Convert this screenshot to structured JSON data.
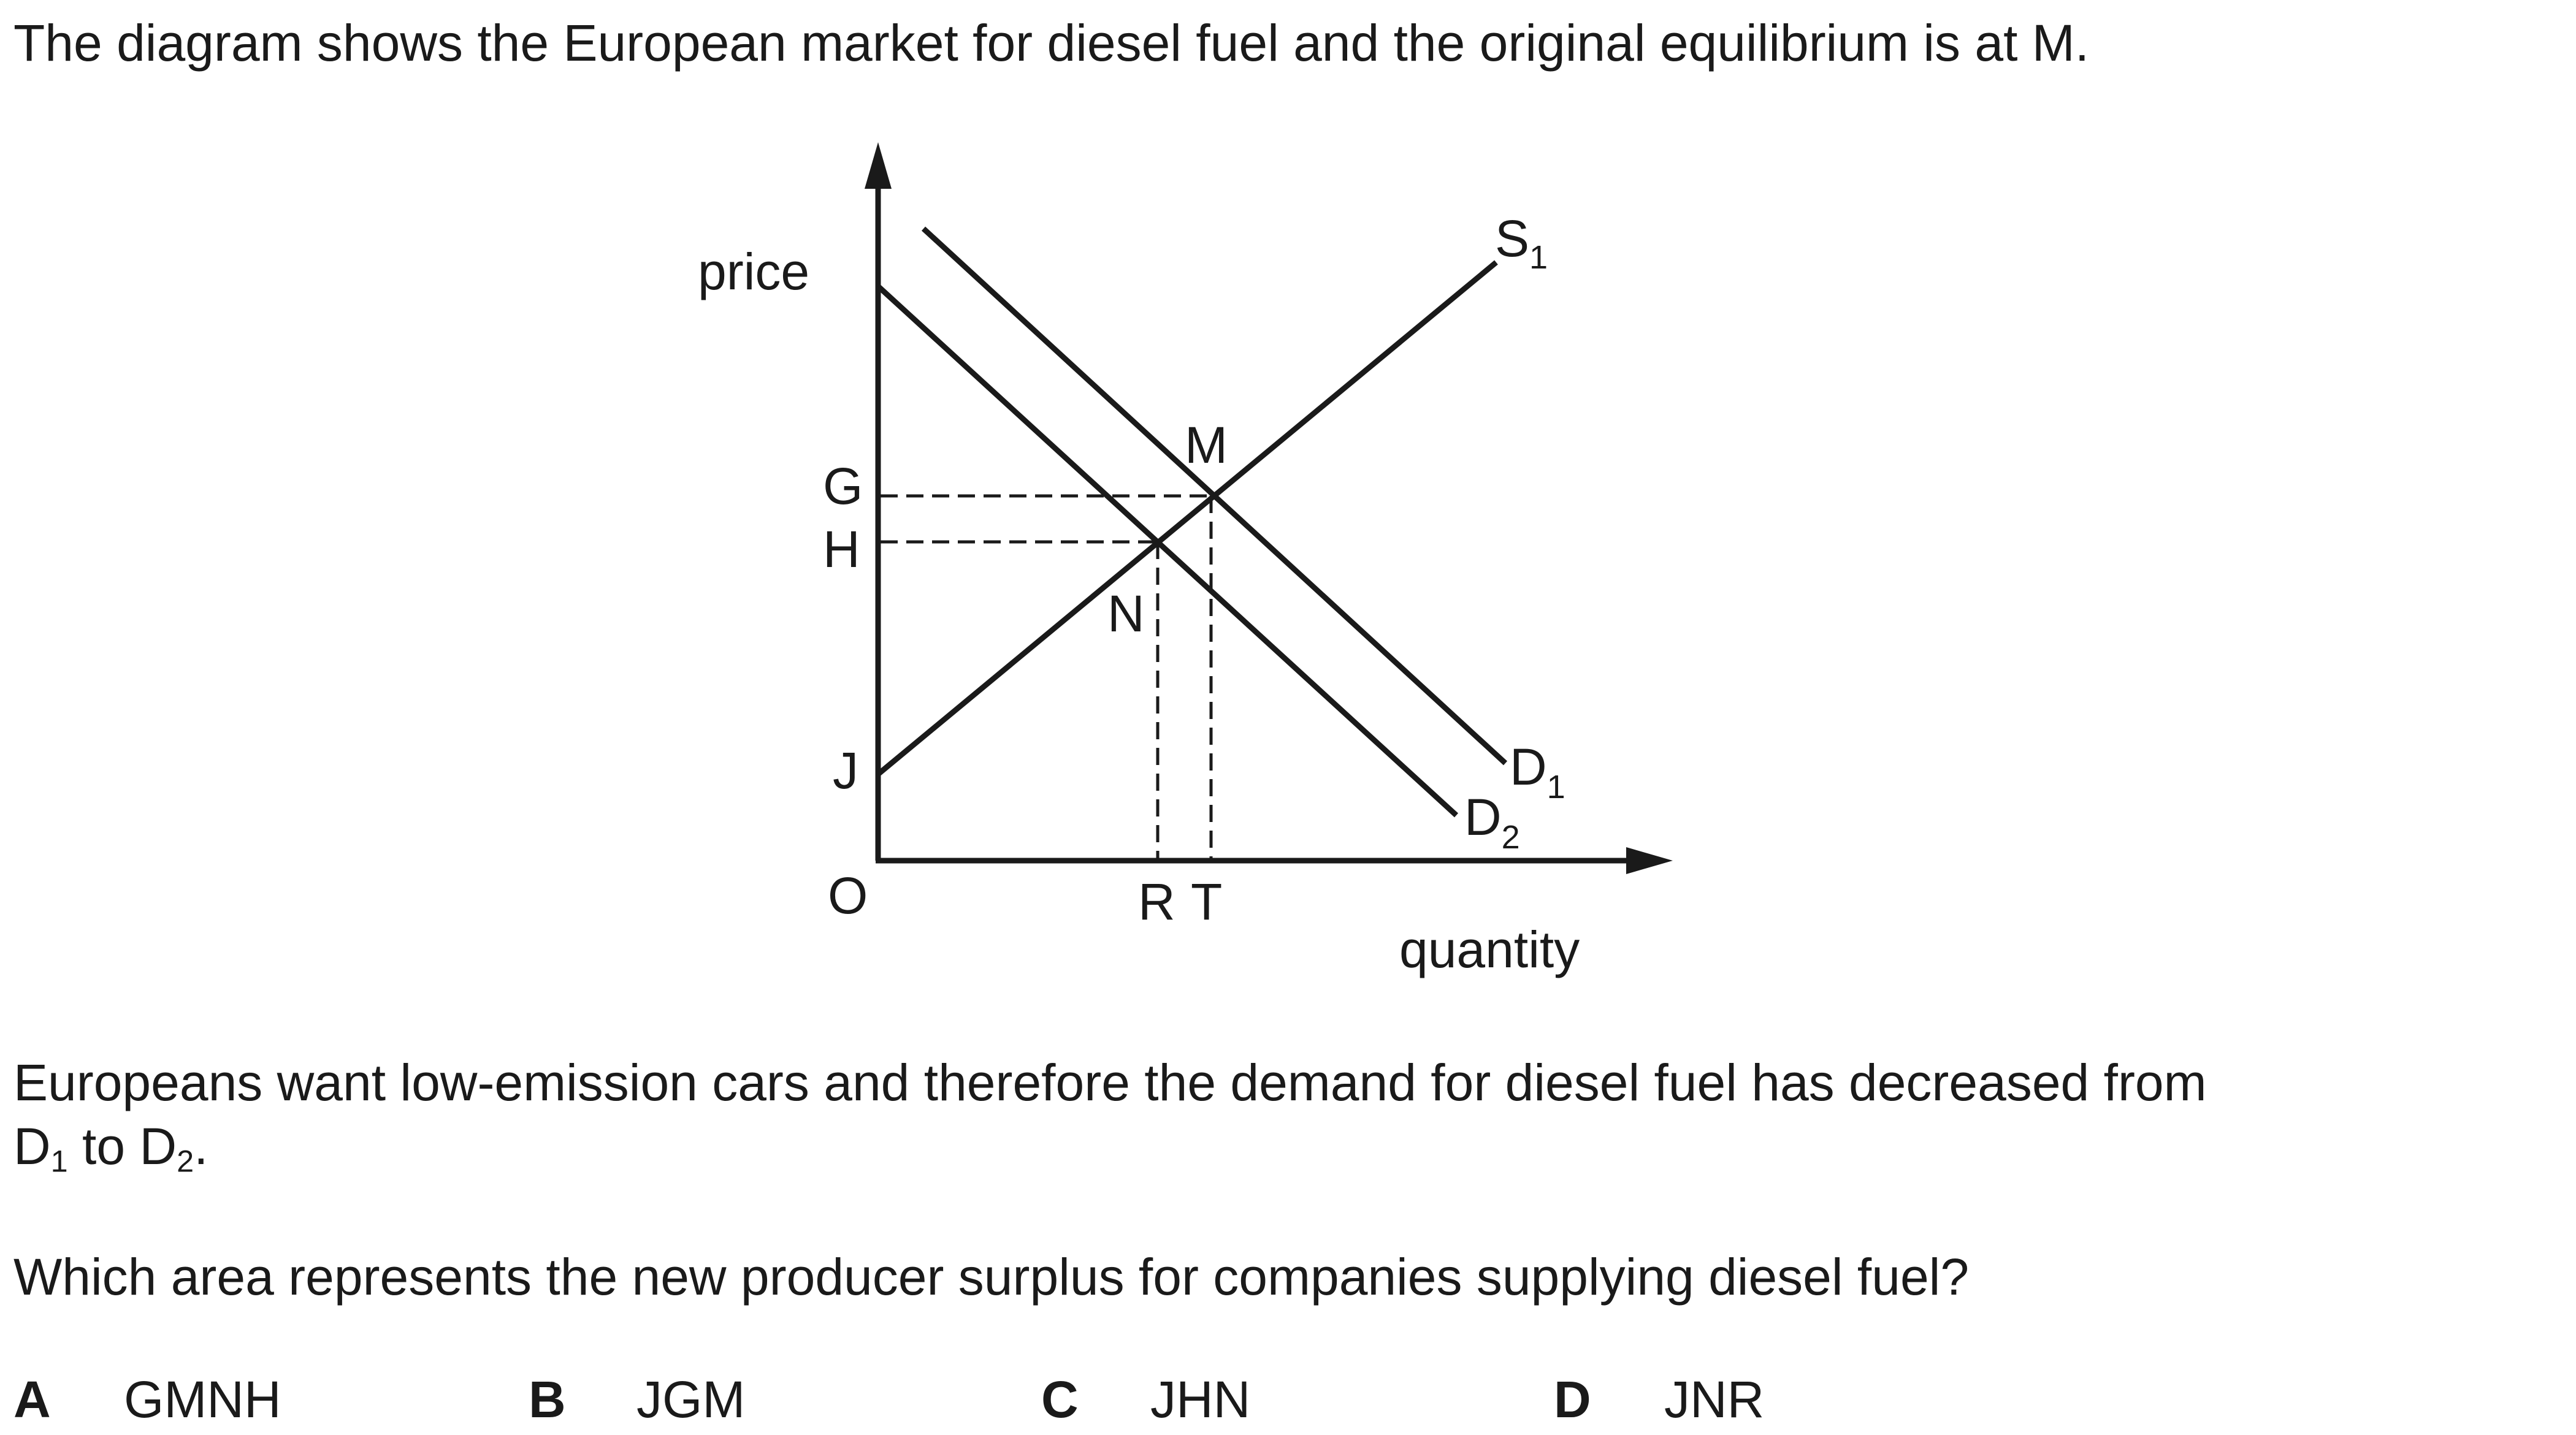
{
  "intro": "The diagram shows the European market for diesel fuel and the original equilibrium is at M.",
  "diagram": {
    "y_axis_label": "price",
    "x_axis_label": "quantity",
    "origin": "O",
    "price_points": [
      "G",
      "H",
      "J"
    ],
    "quantity_points": [
      "R",
      "T"
    ],
    "intersections": {
      "original_equilibrium": "M",
      "new_equilibrium": "N"
    },
    "curves": {
      "supply": {
        "letter": "S",
        "sub": "1"
      },
      "demand_original": {
        "letter": "D",
        "sub": "1"
      },
      "demand_new": {
        "letter": "D",
        "sub": "2"
      }
    }
  },
  "body": {
    "line1": "Europeans want low-emission cars and therefore the demand for diesel fuel has decreased from",
    "line2_d1": "D",
    "line2_d1_sub": "1",
    "line2_mid": " to ",
    "line2_d2": "D",
    "line2_d2_sub": "2",
    "line2_end": ".",
    "question": "Which area represents the new producer surplus for companies supplying diesel fuel?"
  },
  "options": [
    {
      "letter": "A",
      "text": "GMNH"
    },
    {
      "letter": "B",
      "text": "JGM"
    },
    {
      "letter": "C",
      "text": "JHN"
    },
    {
      "letter": "D",
      "text": "JNR"
    }
  ]
}
